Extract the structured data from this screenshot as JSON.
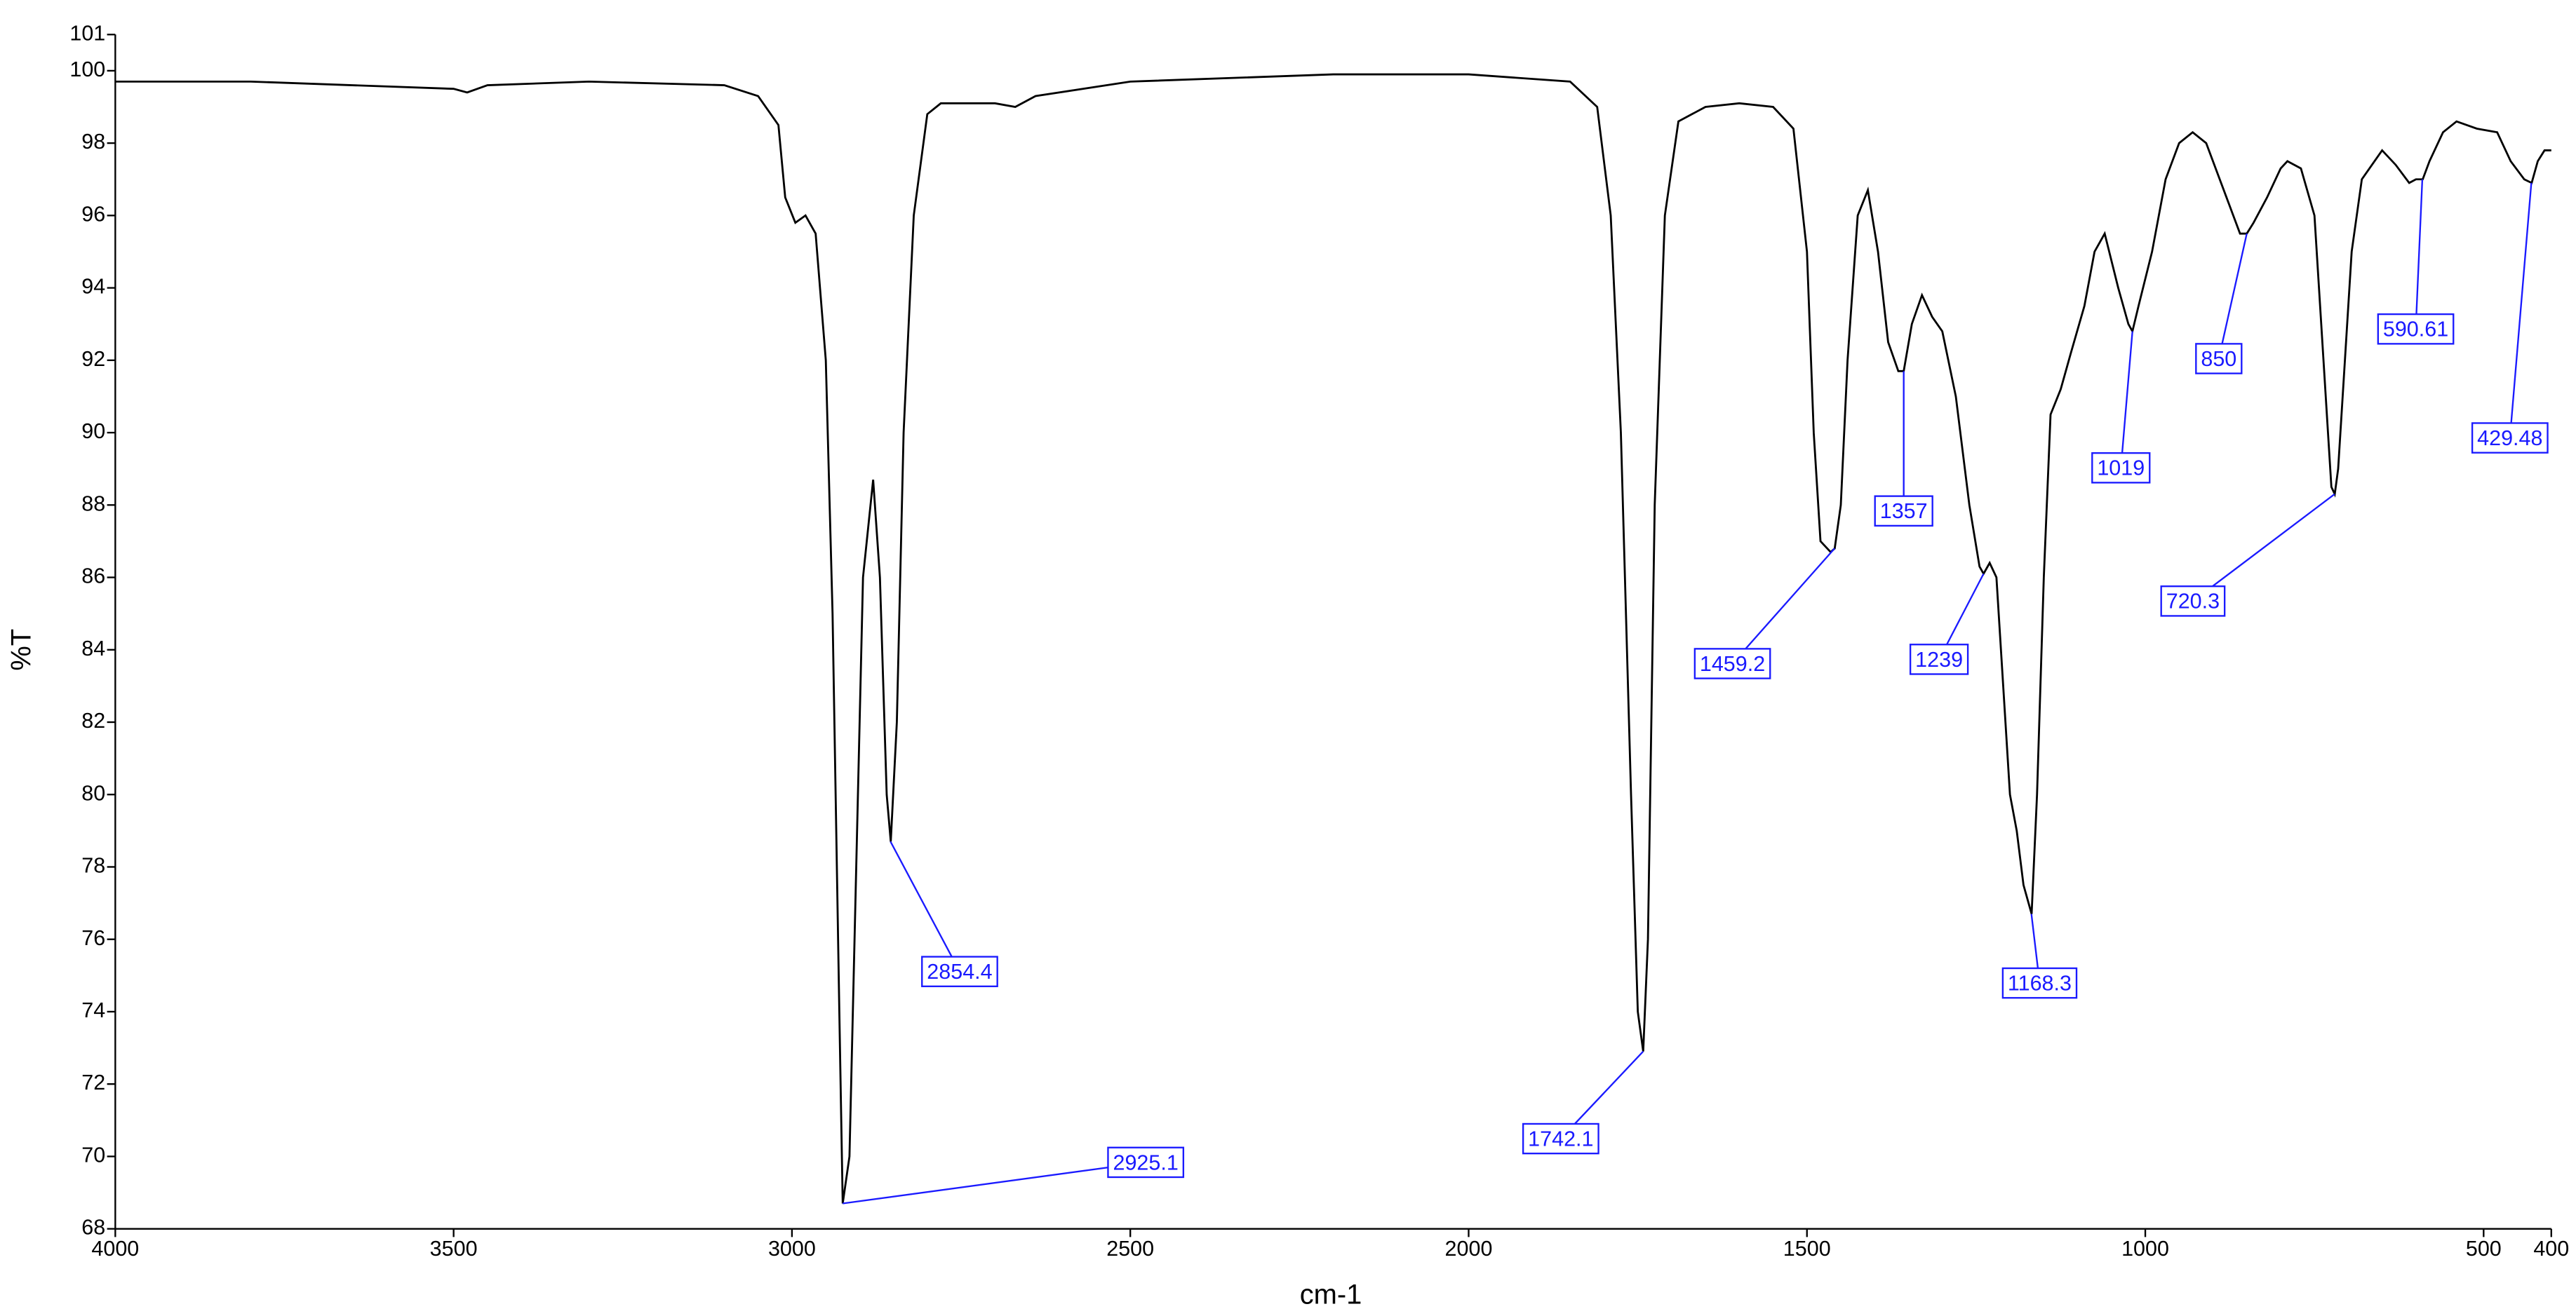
{
  "chart_data": {
    "type": "line",
    "xlabel": "cm-1",
    "ylabel": "%T",
    "color": "#000000",
    "annotation_color": "#1a1aff",
    "xlim": [
      4000,
      400
    ],
    "ylim": [
      68,
      101
    ],
    "xticks": [
      4000,
      3500,
      3000,
      2500,
      2000,
      1500,
      1000,
      500,
      400
    ],
    "yticks": [
      68,
      70,
      72,
      74,
      76,
      78,
      80,
      82,
      84,
      86,
      88,
      90,
      92,
      94,
      96,
      98,
      100,
      101
    ],
    "x": [
      4000,
      3800,
      3500,
      3480,
      3450,
      3300,
      3100,
      3050,
      3020,
      3010,
      2995,
      2980,
      2965,
      2950,
      2940,
      2930,
      2925,
      2915,
      2905,
      2895,
      2880,
      2870,
      2860,
      2854,
      2845,
      2835,
      2820,
      2800,
      2780,
      2700,
      2670,
      2640,
      2500,
      2200,
      2000,
      1850,
      1810,
      1790,
      1775,
      1760,
      1750,
      1742,
      1735,
      1725,
      1710,
      1690,
      1650,
      1600,
      1550,
      1520,
      1500,
      1490,
      1480,
      1465,
      1459,
      1450,
      1440,
      1425,
      1410,
      1395,
      1380,
      1365,
      1357,
      1345,
      1330,
      1315,
      1300,
      1280,
      1260,
      1245,
      1239,
      1230,
      1220,
      1210,
      1200,
      1190,
      1180,
      1168,
      1160,
      1150,
      1140,
      1125,
      1110,
      1090,
      1075,
      1060,
      1040,
      1025,
      1019,
      1010,
      990,
      970,
      950,
      930,
      910,
      890,
      870,
      860,
      850,
      840,
      820,
      800,
      790,
      770,
      750,
      740,
      730,
      725,
      720,
      715,
      705,
      695,
      680,
      650,
      630,
      610,
      600,
      590,
      580,
      560,
      540,
      510,
      480,
      460,
      440,
      429,
      420,
      410,
      400
    ],
    "values": [
      99.7,
      99.7,
      99.5,
      99.4,
      99.6,
      99.7,
      99.6,
      99.3,
      98.5,
      96.5,
      95.8,
      96.0,
      95.5,
      92,
      85,
      74,
      68.7,
      70,
      78,
      86,
      88.7,
      86,
      80,
      78.7,
      82,
      90,
      96,
      98.8,
      99.1,
      99.1,
      99.0,
      99.3,
      99.7,
      99.9,
      99.9,
      99.7,
      99,
      96,
      90,
      80,
      74,
      72.9,
      76,
      88,
      96,
      98.6,
      99.0,
      99.1,
      99.0,
      98.4,
      95,
      90,
      87,
      86.7,
      86.8,
      88,
      92,
      96,
      96.7,
      95,
      92.5,
      91.7,
      91.7,
      93,
      93.8,
      93.2,
      92.8,
      91,
      88,
      86.3,
      86.1,
      86.4,
      86,
      83,
      80,
      79,
      77.5,
      76.7,
      80,
      86,
      90.5,
      91.2,
      92.2,
      93.5,
      95.0,
      95.5,
      94,
      93,
      92.8,
      93.5,
      95,
      97,
      98,
      98.3,
      98,
      97,
      96,
      95.5,
      95.5,
      95.8,
      96.5,
      97.3,
      97.5,
      97.3,
      96,
      93,
      90,
      88.5,
      88.3,
      89,
      92,
      95,
      97,
      97.8,
      97.4,
      96.9,
      97.0,
      97.0,
      97.5,
      98.3,
      98.6,
      98.4,
      98.3,
      97.5,
      97.0,
      96.9,
      97.5,
      97.8,
      97.8
    ],
    "annotations": [
      {
        "x": 2925.1,
        "y": 68.7
      },
      {
        "x": 2854.4,
        "y": 78.7
      },
      {
        "x": 1742.1,
        "y": 72.9
      },
      {
        "x": 1459.2,
        "y": 86.8
      },
      {
        "x": 1357,
        "y": 91.7
      },
      {
        "x": 1239,
        "y": 86.1
      },
      {
        "x": 1168.3,
        "y": 76.7
      },
      {
        "x": 1019,
        "y": 92.8
      },
      {
        "x": 850,
        "y": 95.5
      },
      {
        "x": 720.3,
        "y": 88.3
      },
      {
        "x": 590.61,
        "y": 97.0
      },
      {
        "x": 429.48,
        "y": 96.9
      }
    ]
  }
}
